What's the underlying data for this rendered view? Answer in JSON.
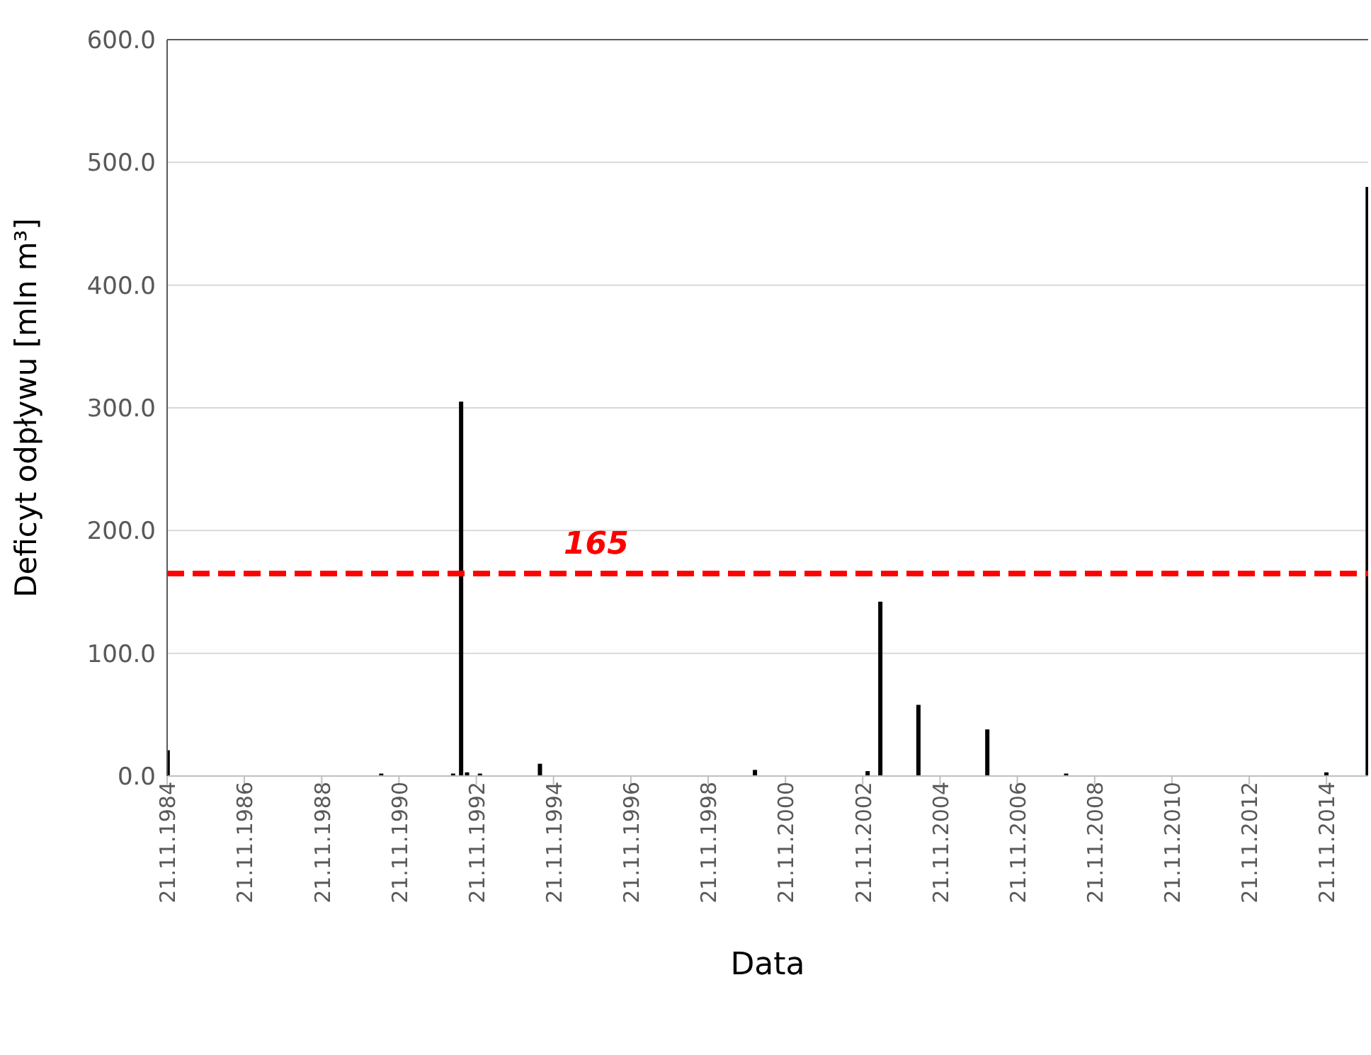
{
  "chart_data": {
    "type": "bar",
    "xlabel": "Data",
    "ylabel": "Deficyt odpływu [mln m³]",
    "x": [
      "1984-11-21",
      "1990-06-01",
      "1992-04-10",
      "1992-06-25",
      "1992-08-20",
      "1992-12-20",
      "1994-07-10",
      "2000-02-01",
      "2003-01-01",
      "2003-05-01",
      "2004-04-25",
      "2006-02-05",
      "2008-02-20",
      "2014-11-15",
      "2015-12-10"
    ],
    "values": [
      21,
      2,
      2,
      305,
      3,
      2,
      10,
      5,
      4,
      142,
      58,
      38,
      2,
      3,
      480
    ],
    "color": "#000000",
    "xlim": [
      "1984-11-21",
      "2015-12-20"
    ],
    "xticks": [
      {
        "value": "1984-11-21",
        "label": "21.11.1984"
      },
      {
        "value": "1986-11-21",
        "label": "21.11.1986"
      },
      {
        "value": "1988-11-21",
        "label": "21.11.1988"
      },
      {
        "value": "1990-11-21",
        "label": "21.11.1990"
      },
      {
        "value": "1992-11-21",
        "label": "21.11.1992"
      },
      {
        "value": "1994-11-21",
        "label": "21.11.1994"
      },
      {
        "value": "1996-11-21",
        "label": "21.11.1996"
      },
      {
        "value": "1998-11-21",
        "label": "21.11.1998"
      },
      {
        "value": "2000-11-21",
        "label": "21.11.2000"
      },
      {
        "value": "2002-11-21",
        "label": "21.11.2002"
      },
      {
        "value": "2004-11-21",
        "label": "21.11.2004"
      },
      {
        "value": "2006-11-21",
        "label": "21.11.2006"
      },
      {
        "value": "2008-11-21",
        "label": "21.11.2008"
      },
      {
        "value": "2010-11-21",
        "label": "21.11.2010"
      },
      {
        "value": "2012-11-21",
        "label": "21.11.2012"
      },
      {
        "value": "2014-11-21",
        "label": "21.11.2014"
      }
    ],
    "ylim": [
      0,
      600
    ],
    "yticks": [
      {
        "value": 0,
        "label": "0.0"
      },
      {
        "value": 100,
        "label": "100.0"
      },
      {
        "value": 200,
        "label": "200.0"
      },
      {
        "value": 300,
        "label": "300.0"
      },
      {
        "value": 400,
        "label": "400.0"
      },
      {
        "value": 500,
        "label": "500.0"
      },
      {
        "value": 600,
        "label": "600.0"
      }
    ],
    "grid": "y",
    "ref_lines": [
      {
        "axis": "y",
        "value": 165,
        "label": "165",
        "color": "#ff0000",
        "line_style": "dashed"
      }
    ]
  }
}
